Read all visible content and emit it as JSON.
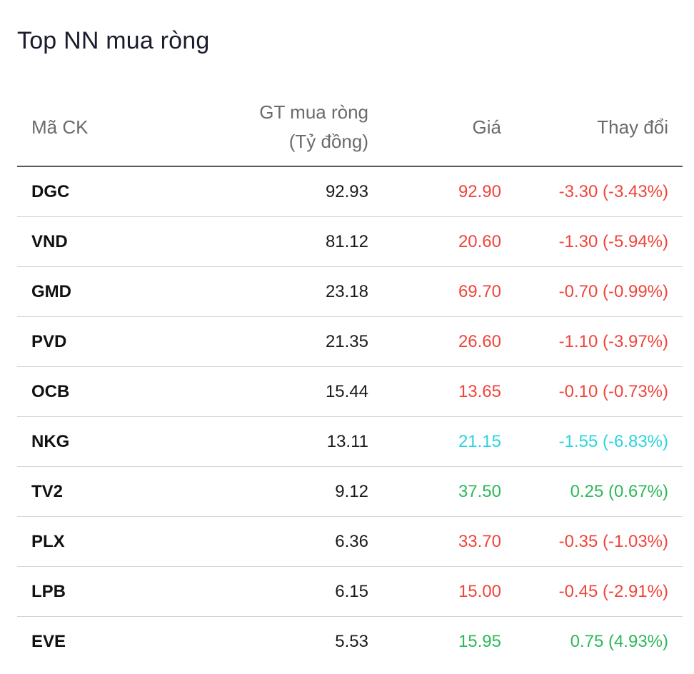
{
  "title": "Top NN mua ròng",
  "columns": {
    "symbol": "Mã CK",
    "net_value_line1": "GT mua ròng",
    "net_value_line2": "(Tỷ đồng)",
    "price": "Giá",
    "change": "Thay đổi"
  },
  "colors": {
    "down": "#f0443a",
    "floor": "#2ad4df",
    "up": "#2db85a"
  },
  "rows": [
    {
      "symbol": "DGC",
      "net_value": "92.93",
      "price": "92.90",
      "change": "-3.30 (-3.43%)",
      "status": "down"
    },
    {
      "symbol": "VND",
      "net_value": "81.12",
      "price": "20.60",
      "change": "-1.30 (-5.94%)",
      "status": "down"
    },
    {
      "symbol": "GMD",
      "net_value": "23.18",
      "price": "69.70",
      "change": "-0.70 (-0.99%)",
      "status": "down"
    },
    {
      "symbol": "PVD",
      "net_value": "21.35",
      "price": "26.60",
      "change": "-1.10 (-3.97%)",
      "status": "down"
    },
    {
      "symbol": "OCB",
      "net_value": "15.44",
      "price": "13.65",
      "change": "-0.10 (-0.73%)",
      "status": "down"
    },
    {
      "symbol": "NKG",
      "net_value": "13.11",
      "price": "21.15",
      "change": "-1.55 (-6.83%)",
      "status": "floor"
    },
    {
      "symbol": "TV2",
      "net_value": "9.12",
      "price": "37.50",
      "change": "0.25 (0.67%)",
      "status": "up"
    },
    {
      "symbol": "PLX",
      "net_value": "6.36",
      "price": "33.70",
      "change": "-0.35 (-1.03%)",
      "status": "down"
    },
    {
      "symbol": "LPB",
      "net_value": "6.15",
      "price": "15.00",
      "change": "-0.45 (-2.91%)",
      "status": "down"
    },
    {
      "symbol": "EVE",
      "net_value": "5.53",
      "price": "15.95",
      "change": "0.75 (4.93%)",
      "status": "up"
    }
  ]
}
